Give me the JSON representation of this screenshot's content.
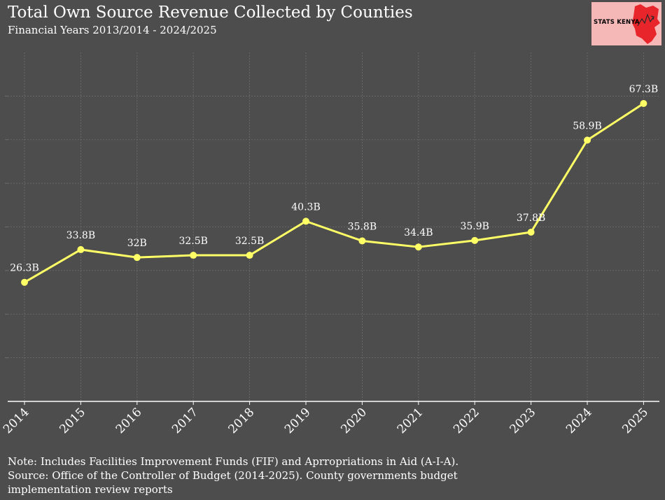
{
  "header": {
    "title": "Total Own Source Revenue Collected by Counties",
    "subtitle": "Financial Years 2013/2014 - 2024/2025"
  },
  "logo": {
    "text": "STATS KENYA",
    "icon": "kenya-map-icon",
    "background": "#f6b7b7",
    "map_color": "#e8252b"
  },
  "footer": {
    "note": "Note: Includes Facilities Improvement Funds (FIF) and Aprropriations in Aid (A-I-A).",
    "source_line1": "Source: Office of the Controller of Budget (2014-2025). County governments budget",
    "source_line2": "implementation review reports"
  },
  "chart_data": {
    "type": "line",
    "title": "Total Own Source Revenue Collected by Counties",
    "subtitle": "Financial Years 2013/2014 - 2024/2025",
    "xlabel": "",
    "ylabel": "",
    "categories": [
      "2014",
      "2015",
      "2016",
      "2017",
      "2018",
      "2019",
      "2020",
      "2021",
      "2022",
      "2023",
      "2024",
      "2025"
    ],
    "series": [
      {
        "values": [
          26.3,
          33.8,
          32,
          32.5,
          32.5,
          40.3,
          35.8,
          34.4,
          35.9,
          37.8,
          58.9,
          67.3
        ],
        "labels": [
          "26.3B",
          "33.8B",
          "32B",
          "32.5B",
          "32.5B",
          "40.3B",
          "35.8B",
          "34.4B",
          "35.9B",
          "37.8B",
          "58.9B",
          "67.3B"
        ],
        "color": "#ffff66"
      }
    ],
    "ylim": [
      -1,
      79
    ],
    "y_gridlines": [
      9,
      19,
      29,
      39,
      49,
      59,
      69
    ],
    "y_tick_labels_shown": false,
    "grid": true,
    "background": "#4d4d4d",
    "grid_color": "#6e6e6e",
    "axis_color": "#ffffff"
  }
}
